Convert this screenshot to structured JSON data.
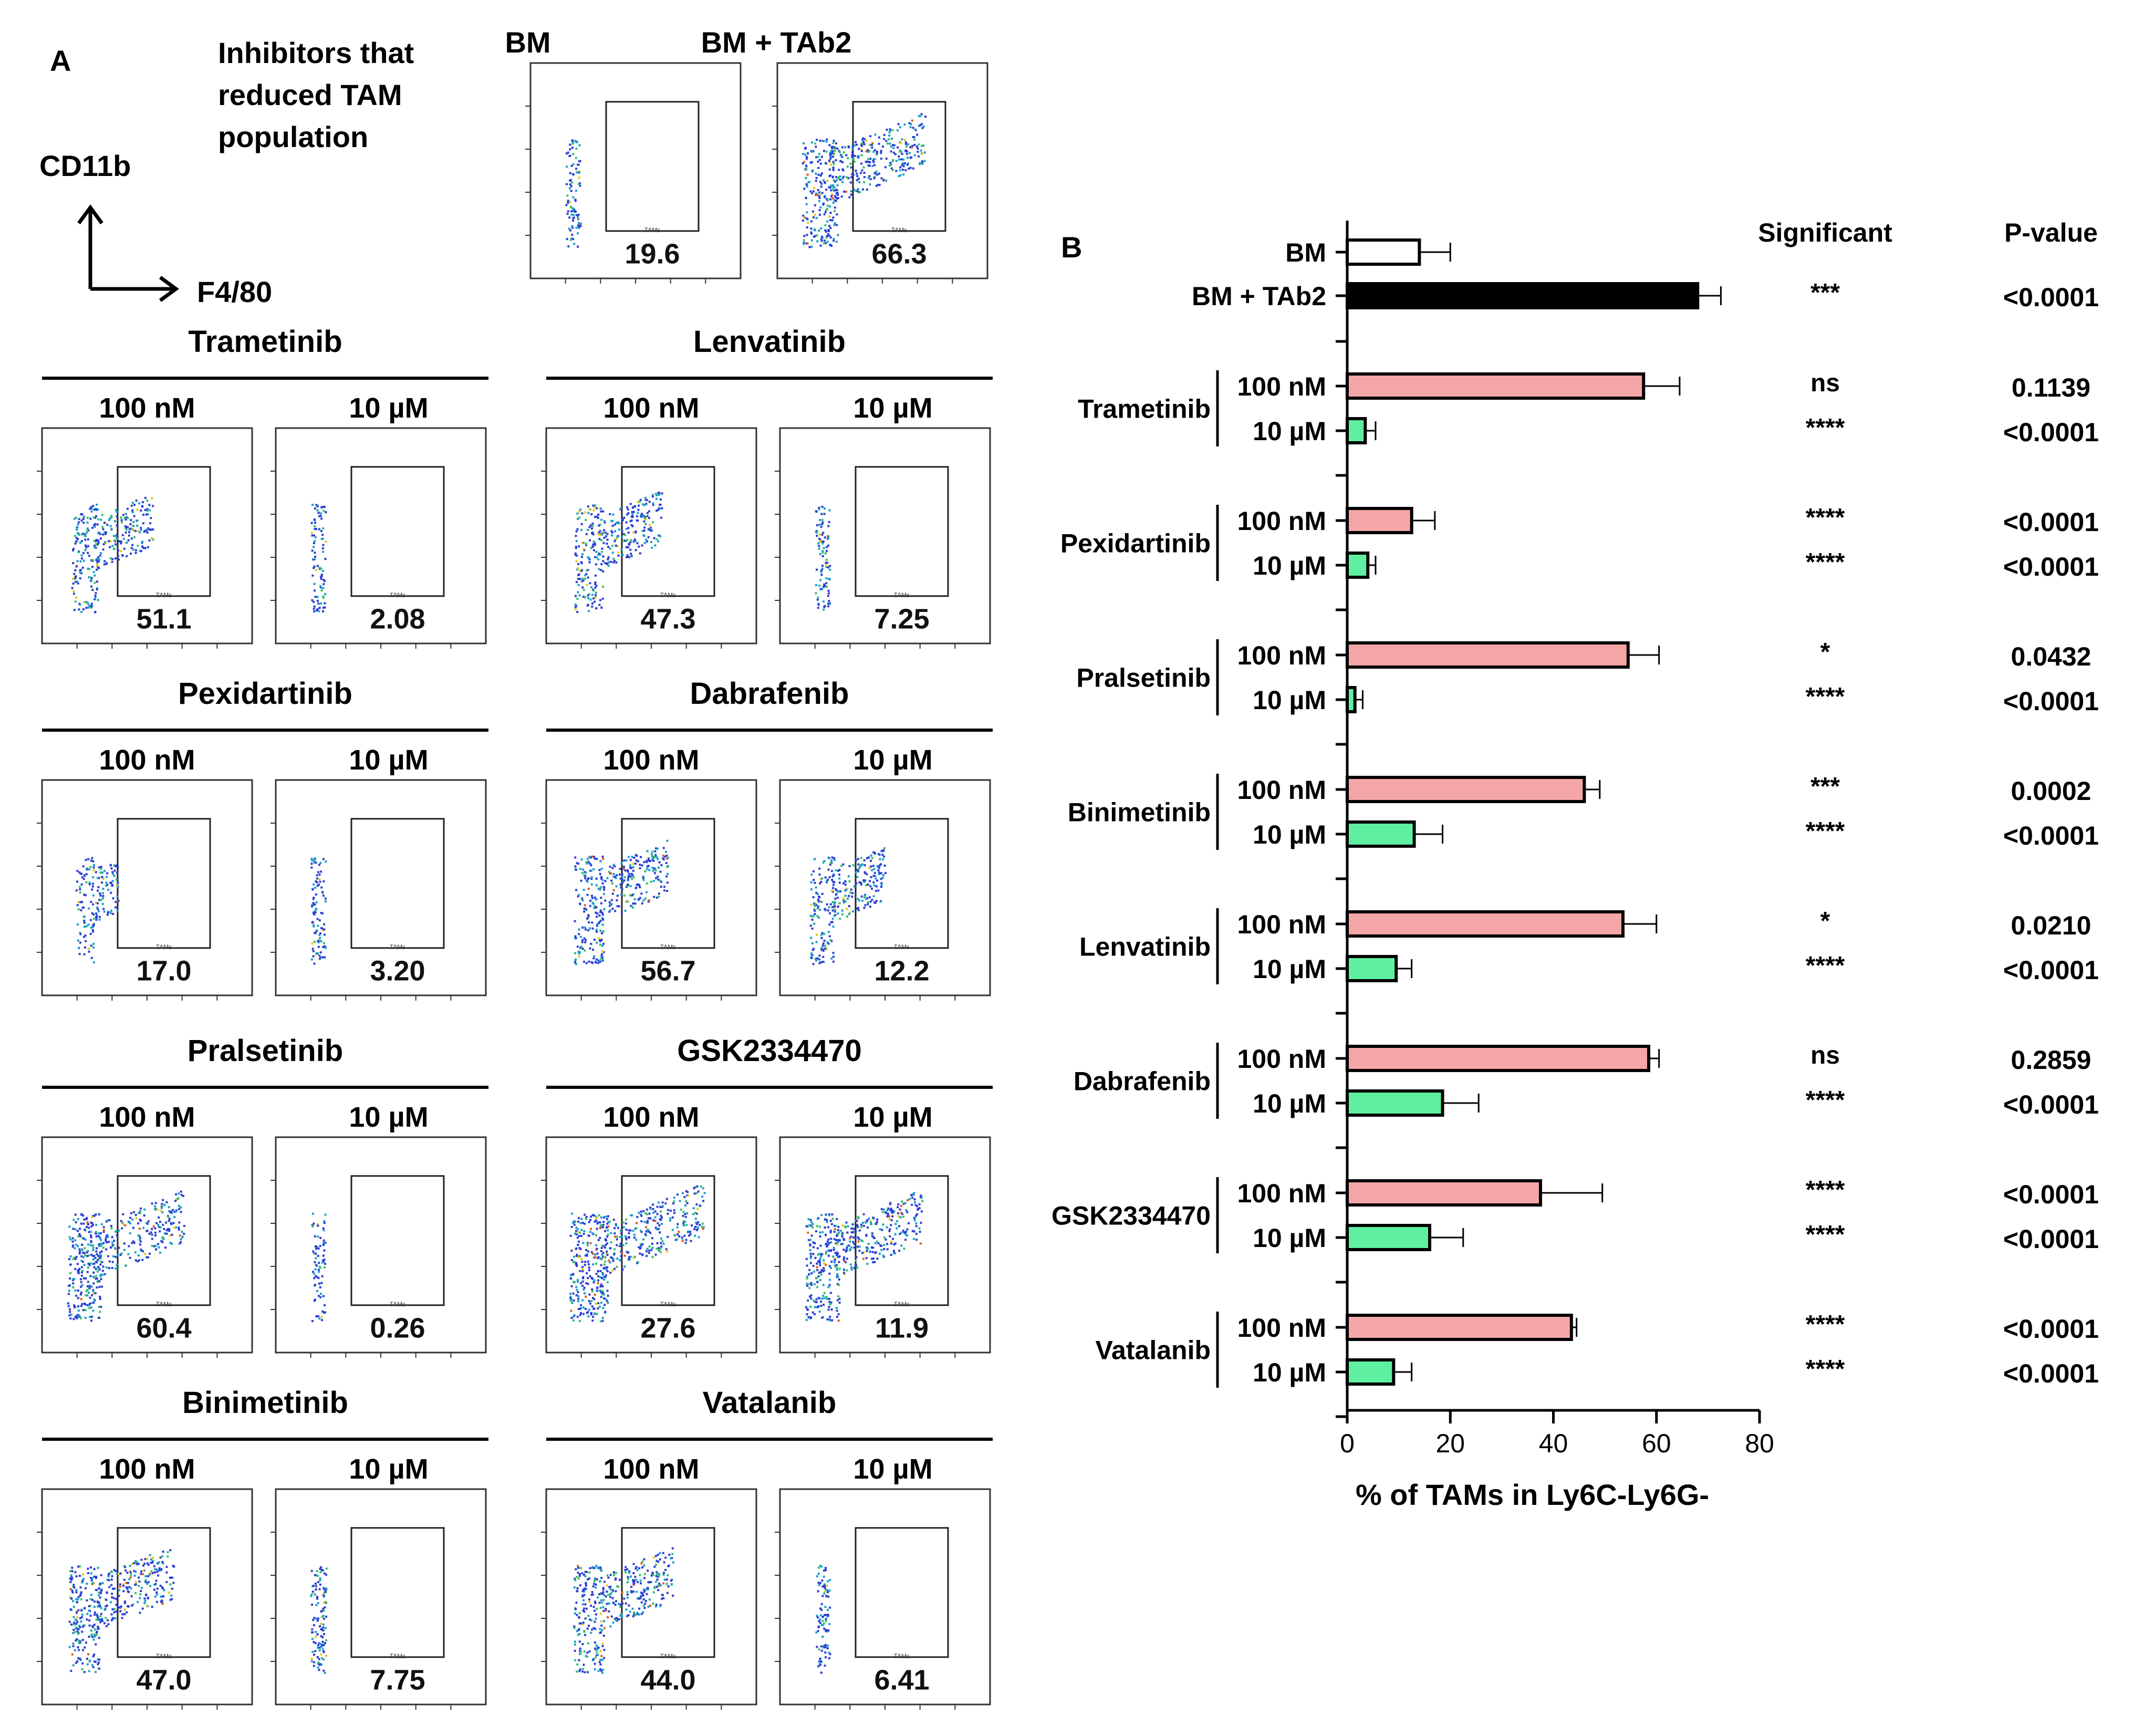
{
  "panel_a": {
    "label": "A",
    "intro": [
      "Inhibitors that",
      "reduced TAM",
      "population"
    ],
    "axis_y": "CD11b",
    "axis_x": "F4/80",
    "gate_label": "TAMs",
    "controls": [
      {
        "title": "BM",
        "value": "19.6",
        "density": 0.08
      },
      {
        "title": "BM + TAb2",
        "value": "66.3",
        "density": 0.9
      }
    ],
    "groups": [
      {
        "drug": "Trametinib",
        "c1": "100 nM",
        "v1": "51.1",
        "d1": 0.55,
        "c2": "10 µM",
        "v2": "2.08",
        "d2": 0.06
      },
      {
        "drug": "Lenvatinib",
        "c1": "100 nM",
        "v1": "47.3",
        "d1": 0.6,
        "c2": "10 µM",
        "v2": "7.25",
        "d2": 0.07
      },
      {
        "drug": "Pexidartinib",
        "c1": "100 nM",
        "v1": "17.0",
        "d1": 0.22,
        "c2": "10 µM",
        "v2": "3.20",
        "d2": 0.08
      },
      {
        "drug": "Dabrafenib",
        "c1": "100 nM",
        "v1": "56.7",
        "d1": 0.65,
        "c2": "10 µM",
        "v2": "12.2",
        "d2": 0.5
      },
      {
        "drug": "Pralsetinib",
        "c1": "100 nM",
        "v1": "60.4",
        "d1": 0.85,
        "c2": "10  µM",
        "v2": "0.26",
        "d2": 0.03
      },
      {
        "drug": "GSK2334470",
        "c1": "100 nM",
        "v1": "27.6",
        "d1": 1.0,
        "c2": "10  µM",
        "v2": "11.9",
        "d2": 0.85
      },
      {
        "drug": "Binimetinib",
        "c1": "100 nM",
        "v1": "47.0",
        "d1": 0.75,
        "c2": "10 µM",
        "v2": "7.75",
        "d2": 0.12
      },
      {
        "drug": "Vatalanib",
        "c1": "100 nM",
        "v1": "44.0",
        "d1": 0.7,
        "c2": "10 µM",
        "v2": "6.41",
        "d2": 0.07
      }
    ]
  },
  "chart_data": {
    "type": "bar",
    "orientation": "horizontal",
    "panel_label": "B",
    "xlabel": "% of TAMs in Ly6C-Ly6G-",
    "xlim": [
      0,
      80
    ],
    "xticks": [
      "0",
      "20",
      "40",
      "60",
      "80"
    ],
    "col_headers": [
      "Significant",
      "P-value"
    ],
    "controls": [
      {
        "label": "BM",
        "value": 14,
        "error": 6,
        "color": "#ffffff",
        "sig": "",
        "p": ""
      },
      {
        "label": "BM + TAb2",
        "value": 68,
        "error": 4.5,
        "color": "#000000",
        "sig": "***",
        "p": "<0.0001"
      }
    ],
    "groups": [
      {
        "drug": "Trametinib",
        "bars": [
          {
            "conc": "100 nM",
            "value": 57.5,
            "error": 7,
            "sig": "ns",
            "p": "0.1139"
          },
          {
            "conc": "10 µM",
            "value": 3.5,
            "error": 2,
            "sig": "****",
            "p": "<0.0001"
          }
        ]
      },
      {
        "drug": "Pexidartinib",
        "bars": [
          {
            "conc": "100 nM",
            "value": 12.5,
            "error": 4.5,
            "sig": "****",
            "p": "<0.0001"
          },
          {
            "conc": "10 µM",
            "value": 4,
            "error": 1.5,
            "sig": "****",
            "p": "<0.0001"
          }
        ]
      },
      {
        "drug": "Pralsetinib",
        "bars": [
          {
            "conc": "100 nM",
            "value": 54.5,
            "error": 6,
            "sig": "*",
            "p": "0.0432"
          },
          {
            "conc": "10 µM",
            "value": 1.5,
            "error": 1.5,
            "sig": "****",
            "p": "<0.0001"
          }
        ]
      },
      {
        "drug": "Binimetinib",
        "bars": [
          {
            "conc": "100 nM",
            "value": 46,
            "error": 3,
            "sig": "***",
            "p": "0.0002"
          },
          {
            "conc": "10 µM",
            "value": 13,
            "error": 5.5,
            "sig": "****",
            "p": "<0.0001"
          }
        ]
      },
      {
        "drug": "Lenvatinib",
        "bars": [
          {
            "conc": "100 nM",
            "value": 53.5,
            "error": 6.5,
            "sig": "*",
            "p": "0.0210"
          },
          {
            "conc": "10 µM",
            "value": 9.5,
            "error": 3,
            "sig": "****",
            "p": "<0.0001"
          }
        ]
      },
      {
        "drug": "Dabrafenib",
        "bars": [
          {
            "conc": "100 nM",
            "value": 58.5,
            "error": 2,
            "sig": "ns",
            "p": "0.2859"
          },
          {
            "conc": "10 µM",
            "value": 18.5,
            "error": 7,
            "sig": "****",
            "p": "<0.0001"
          }
        ]
      },
      {
        "drug": "GSK2334470",
        "bars": [
          {
            "conc": "100 nM",
            "value": 37.5,
            "error": 12,
            "sig": "****",
            "p": "<0.0001"
          },
          {
            "conc": "10 µM",
            "value": 16,
            "error": 6.5,
            "sig": "****",
            "p": "<0.0001"
          }
        ]
      },
      {
        "drug": "Vatalanib",
        "bars": [
          {
            "conc": "100 nM",
            "value": 43.5,
            "error": 1,
            "sig": "****",
            "p": "<0.0001"
          },
          {
            "conc": "10 µM",
            "value": 9,
            "error": 3.5,
            "sig": "****",
            "p": "<0.0001"
          }
        ]
      }
    ],
    "colors": {
      "100 nM": "#f4a6a6",
      "10 µM": "#5ef0a0"
    }
  }
}
